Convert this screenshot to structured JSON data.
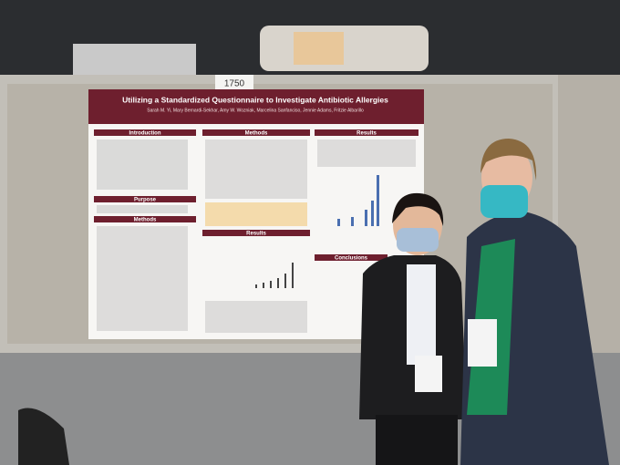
{
  "booth_number": "1750",
  "poster": {
    "title": "Utilizing a Standardized Questionnaire to Investigate Antibiotic Allergies",
    "authors": "Sarah M. Yi, Mary Bernardi-Sekhar, Amy W. Wozniak, Marcelina Sanfanciso, Jennie Adams, Fritzie Albarillo",
    "left_column": [
      "Introduction",
      "Purpose",
      "Methods"
    ],
    "middle_column": [
      "Methods",
      "Results"
    ],
    "right_column": [
      "Results",
      "Conclusions"
    ]
  }
}
